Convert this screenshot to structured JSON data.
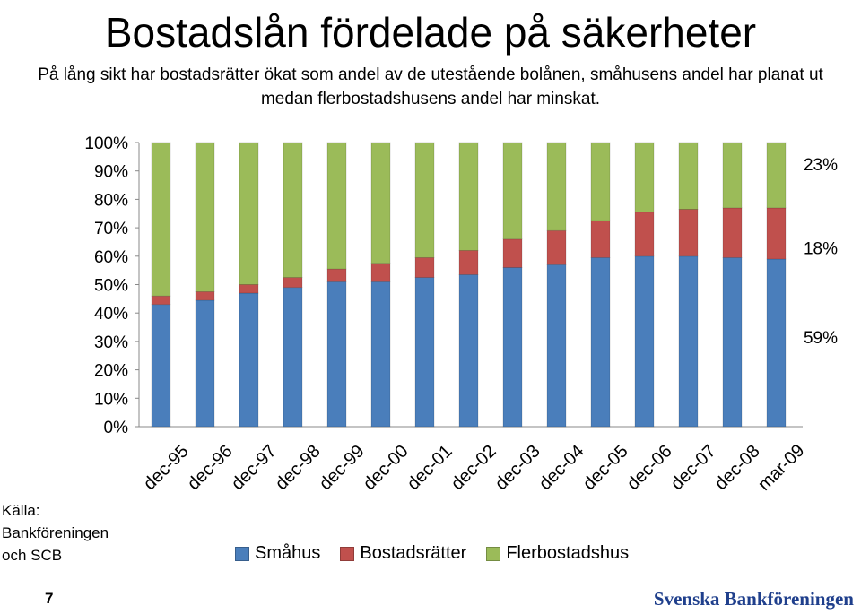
{
  "title": "Bostadslån fördelade på säkerheter",
  "subtitle": "På lång sikt har bostadsrätter ökat som andel av de utestående bolånen, småhusens andel har planat ut medan flerbostadshusens andel har minskat.",
  "source": "Källa: Bankföreningen och SCB",
  "page_number": "7",
  "brand": "Svenska Bankföreningen",
  "chart_data": {
    "type": "bar",
    "stacked": true,
    "categories": [
      "dec-95",
      "dec-96",
      "dec-97",
      "dec-98",
      "dec-99",
      "dec-00",
      "dec-01",
      "dec-02",
      "dec-03",
      "dec-04",
      "dec-05",
      "dec-06",
      "dec-07",
      "dec-08",
      "mar-09"
    ],
    "y_ticks": [
      "0%",
      "10%",
      "20%",
      "30%",
      "40%",
      "50%",
      "60%",
      "70%",
      "80%",
      "90%",
      "100%"
    ],
    "ylim": [
      0,
      100
    ],
    "grid": false,
    "legend_position": "bottom",
    "series": [
      {
        "name": "Småhus",
        "color": "#4a7ebb",
        "values": [
          43,
          44.5,
          47,
          49,
          51,
          51,
          52.5,
          53.5,
          56,
          57,
          59.5,
          60,
          60,
          59.5,
          59
        ]
      },
      {
        "name": "Bostadsrätter",
        "color": "#c0504d",
        "values": [
          3,
          3,
          3,
          3.5,
          4.5,
          6.5,
          7,
          8.5,
          10,
          12,
          13,
          15.5,
          16.5,
          17.5,
          18
        ]
      },
      {
        "name": "Flerbostadshus",
        "color": "#9bbb59",
        "values": [
          54,
          52.5,
          50,
          47.5,
          44.5,
          42.5,
          40.5,
          38,
          34,
          31,
          27.5,
          24.5,
          23.5,
          23,
          23
        ]
      }
    ],
    "annotations": [
      "23%",
      "18%",
      "59%"
    ]
  }
}
